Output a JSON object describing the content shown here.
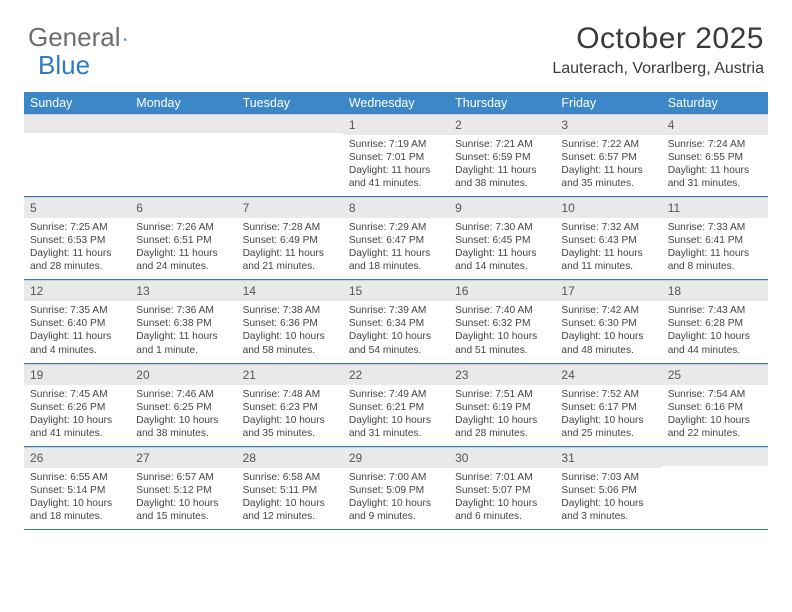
{
  "brand": {
    "part1": "General",
    "part2": "Blue"
  },
  "title": "October 2025",
  "location": "Lauterach, Vorarlberg, Austria",
  "colors": {
    "header_bg": "#3b87c8",
    "border": "#2f7bbf",
    "daynum_bg": "#e9e9e9",
    "text": "#3a3a3a"
  },
  "daysOfWeek": [
    "Sunday",
    "Monday",
    "Tuesday",
    "Wednesday",
    "Thursday",
    "Friday",
    "Saturday"
  ],
  "weeks": [
    [
      {
        "n": "",
        "sr": "",
        "ss": "",
        "dl": ""
      },
      {
        "n": "",
        "sr": "",
        "ss": "",
        "dl": ""
      },
      {
        "n": "",
        "sr": "",
        "ss": "",
        "dl": ""
      },
      {
        "n": "1",
        "sr": "Sunrise: 7:19 AM",
        "ss": "Sunset: 7:01 PM",
        "dl": "Daylight: 11 hours and 41 minutes."
      },
      {
        "n": "2",
        "sr": "Sunrise: 7:21 AM",
        "ss": "Sunset: 6:59 PM",
        "dl": "Daylight: 11 hours and 38 minutes."
      },
      {
        "n": "3",
        "sr": "Sunrise: 7:22 AM",
        "ss": "Sunset: 6:57 PM",
        "dl": "Daylight: 11 hours and 35 minutes."
      },
      {
        "n": "4",
        "sr": "Sunrise: 7:24 AM",
        "ss": "Sunset: 6:55 PM",
        "dl": "Daylight: 11 hours and 31 minutes."
      }
    ],
    [
      {
        "n": "5",
        "sr": "Sunrise: 7:25 AM",
        "ss": "Sunset: 6:53 PM",
        "dl": "Daylight: 11 hours and 28 minutes."
      },
      {
        "n": "6",
        "sr": "Sunrise: 7:26 AM",
        "ss": "Sunset: 6:51 PM",
        "dl": "Daylight: 11 hours and 24 minutes."
      },
      {
        "n": "7",
        "sr": "Sunrise: 7:28 AM",
        "ss": "Sunset: 6:49 PM",
        "dl": "Daylight: 11 hours and 21 minutes."
      },
      {
        "n": "8",
        "sr": "Sunrise: 7:29 AM",
        "ss": "Sunset: 6:47 PM",
        "dl": "Daylight: 11 hours and 18 minutes."
      },
      {
        "n": "9",
        "sr": "Sunrise: 7:30 AM",
        "ss": "Sunset: 6:45 PM",
        "dl": "Daylight: 11 hours and 14 minutes."
      },
      {
        "n": "10",
        "sr": "Sunrise: 7:32 AM",
        "ss": "Sunset: 6:43 PM",
        "dl": "Daylight: 11 hours and 11 minutes."
      },
      {
        "n": "11",
        "sr": "Sunrise: 7:33 AM",
        "ss": "Sunset: 6:41 PM",
        "dl": "Daylight: 11 hours and 8 minutes."
      }
    ],
    [
      {
        "n": "12",
        "sr": "Sunrise: 7:35 AM",
        "ss": "Sunset: 6:40 PM",
        "dl": "Daylight: 11 hours and 4 minutes."
      },
      {
        "n": "13",
        "sr": "Sunrise: 7:36 AM",
        "ss": "Sunset: 6:38 PM",
        "dl": "Daylight: 11 hours and 1 minute."
      },
      {
        "n": "14",
        "sr": "Sunrise: 7:38 AM",
        "ss": "Sunset: 6:36 PM",
        "dl": "Daylight: 10 hours and 58 minutes."
      },
      {
        "n": "15",
        "sr": "Sunrise: 7:39 AM",
        "ss": "Sunset: 6:34 PM",
        "dl": "Daylight: 10 hours and 54 minutes."
      },
      {
        "n": "16",
        "sr": "Sunrise: 7:40 AM",
        "ss": "Sunset: 6:32 PM",
        "dl": "Daylight: 10 hours and 51 minutes."
      },
      {
        "n": "17",
        "sr": "Sunrise: 7:42 AM",
        "ss": "Sunset: 6:30 PM",
        "dl": "Daylight: 10 hours and 48 minutes."
      },
      {
        "n": "18",
        "sr": "Sunrise: 7:43 AM",
        "ss": "Sunset: 6:28 PM",
        "dl": "Daylight: 10 hours and 44 minutes."
      }
    ],
    [
      {
        "n": "19",
        "sr": "Sunrise: 7:45 AM",
        "ss": "Sunset: 6:26 PM",
        "dl": "Daylight: 10 hours and 41 minutes."
      },
      {
        "n": "20",
        "sr": "Sunrise: 7:46 AM",
        "ss": "Sunset: 6:25 PM",
        "dl": "Daylight: 10 hours and 38 minutes."
      },
      {
        "n": "21",
        "sr": "Sunrise: 7:48 AM",
        "ss": "Sunset: 6:23 PM",
        "dl": "Daylight: 10 hours and 35 minutes."
      },
      {
        "n": "22",
        "sr": "Sunrise: 7:49 AM",
        "ss": "Sunset: 6:21 PM",
        "dl": "Daylight: 10 hours and 31 minutes."
      },
      {
        "n": "23",
        "sr": "Sunrise: 7:51 AM",
        "ss": "Sunset: 6:19 PM",
        "dl": "Daylight: 10 hours and 28 minutes."
      },
      {
        "n": "24",
        "sr": "Sunrise: 7:52 AM",
        "ss": "Sunset: 6:17 PM",
        "dl": "Daylight: 10 hours and 25 minutes."
      },
      {
        "n": "25",
        "sr": "Sunrise: 7:54 AM",
        "ss": "Sunset: 6:16 PM",
        "dl": "Daylight: 10 hours and 22 minutes."
      }
    ],
    [
      {
        "n": "26",
        "sr": "Sunrise: 6:55 AM",
        "ss": "Sunset: 5:14 PM",
        "dl": "Daylight: 10 hours and 18 minutes."
      },
      {
        "n": "27",
        "sr": "Sunrise: 6:57 AM",
        "ss": "Sunset: 5:12 PM",
        "dl": "Daylight: 10 hours and 15 minutes."
      },
      {
        "n": "28",
        "sr": "Sunrise: 6:58 AM",
        "ss": "Sunset: 5:11 PM",
        "dl": "Daylight: 10 hours and 12 minutes."
      },
      {
        "n": "29",
        "sr": "Sunrise: 7:00 AM",
        "ss": "Sunset: 5:09 PM",
        "dl": "Daylight: 10 hours and 9 minutes."
      },
      {
        "n": "30",
        "sr": "Sunrise: 7:01 AM",
        "ss": "Sunset: 5:07 PM",
        "dl": "Daylight: 10 hours and 6 minutes."
      },
      {
        "n": "31",
        "sr": "Sunrise: 7:03 AM",
        "ss": "Sunset: 5:06 PM",
        "dl": "Daylight: 10 hours and 3 minutes."
      },
      {
        "n": "",
        "sr": "",
        "ss": "",
        "dl": ""
      }
    ]
  ]
}
